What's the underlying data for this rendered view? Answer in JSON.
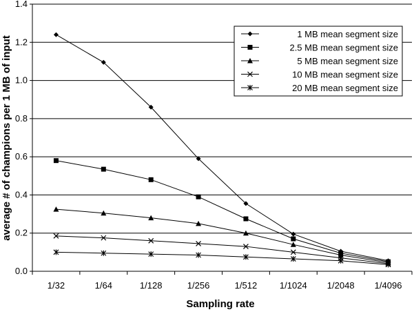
{
  "chart_data": {
    "type": "line",
    "title": "",
    "xlabel": "Sampling rate",
    "ylabel": "average # of champions per 1 MB of input",
    "categories": [
      "1/32",
      "1/64",
      "1/128",
      "1/256",
      "1/512",
      "1/1024",
      "1/2048",
      "1/4096"
    ],
    "ylim": [
      0,
      1.4
    ],
    "yticks": [
      "0.0",
      "0.2",
      "0.4",
      "0.6",
      "0.8",
      "1.0",
      "1.2",
      "1.4"
    ],
    "grid": "horizontal",
    "legend_position": "top-right",
    "series": [
      {
        "name": "1 MB mean segment size",
        "marker": "diamond",
        "values": [
          1.24,
          1.095,
          0.86,
          0.59,
          0.355,
          0.195,
          0.105,
          0.055
        ]
      },
      {
        "name": "2.5 MB mean segment size",
        "marker": "square",
        "values": [
          0.58,
          0.535,
          0.48,
          0.39,
          0.275,
          0.17,
          0.095,
          0.05
        ]
      },
      {
        "name": "5 MB mean segment size",
        "marker": "triangle",
        "values": [
          0.325,
          0.305,
          0.28,
          0.25,
          0.2,
          0.14,
          0.085,
          0.045
        ]
      },
      {
        "name": "10 MB mean segment size",
        "marker": "x",
        "values": [
          0.185,
          0.175,
          0.16,
          0.145,
          0.13,
          0.1,
          0.07,
          0.04
        ]
      },
      {
        "name": "20 MB mean segment size",
        "marker": "star",
        "values": [
          0.1,
          0.095,
          0.09,
          0.085,
          0.075,
          0.065,
          0.055,
          0.035
        ]
      }
    ]
  }
}
